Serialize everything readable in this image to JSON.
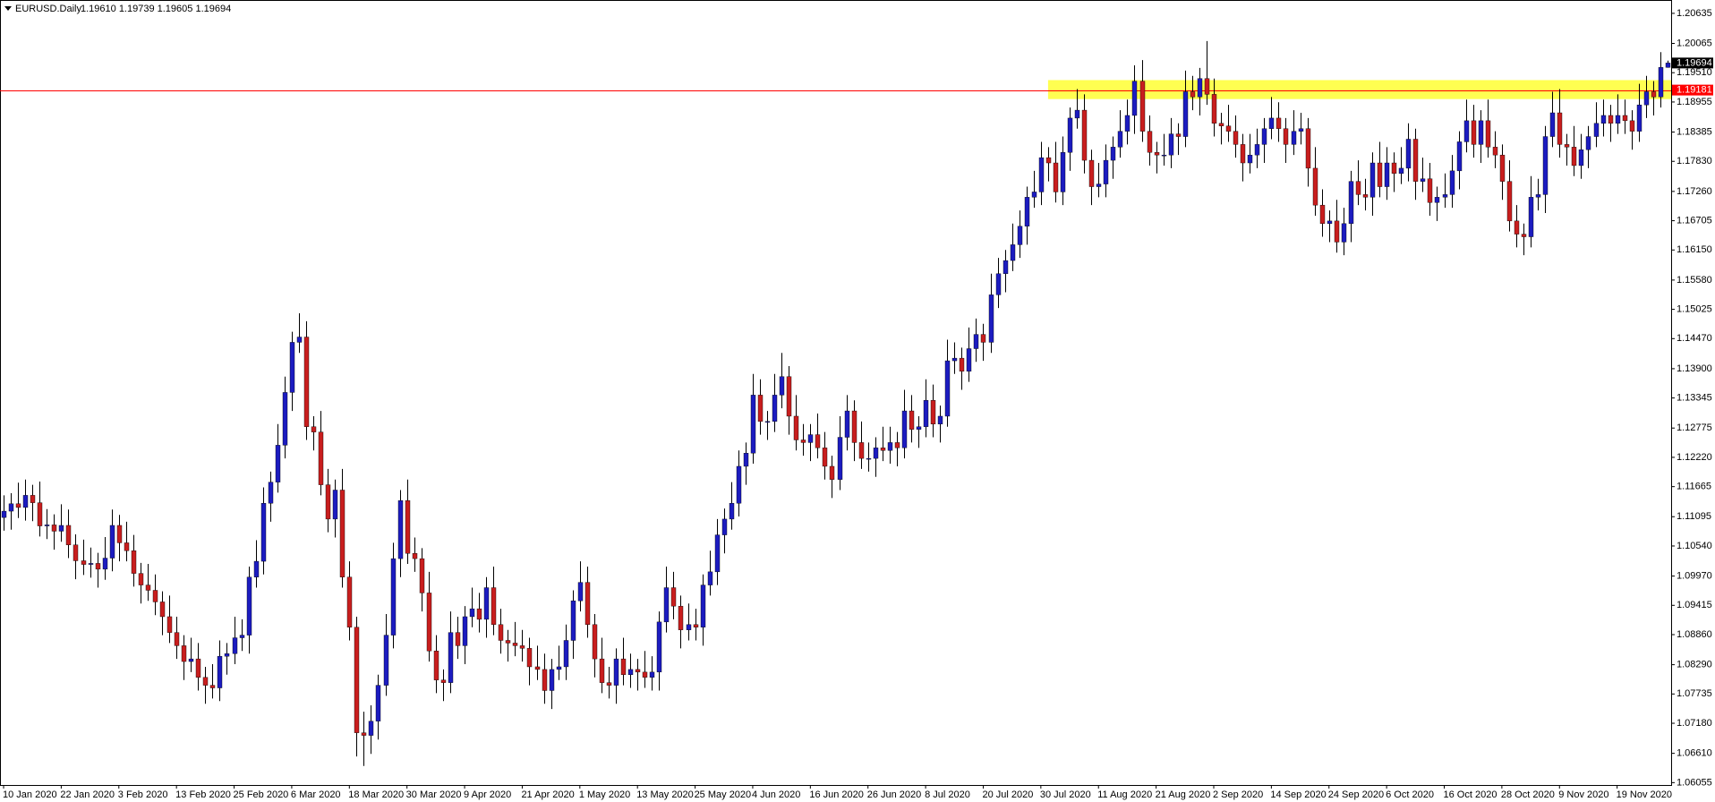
{
  "chart_data": {
    "type": "candlestick",
    "title": "EURUSD.Daily",
    "subtitle": "1.19610 1.19739 1.19605 1.19694",
    "up_color": "#1c1cc0",
    "down_color": "#c81e1e",
    "ylim": [
      1.0601,
      1.2082
    ],
    "yticks": [
      1.20635,
      1.20065,
      {
        "value": 1.1951,
        "label": "1.19510"
      },
      1.18955,
      1.18385,
      {
        "value": 1.1783,
        "label": "1.17830"
      },
      {
        "value": 1.1726,
        "label": "1.17260"
      },
      1.16705,
      {
        "value": 1.1615,
        "label": "1.16150"
      },
      {
        "value": 1.1558,
        "label": "1.15580"
      },
      1.15025,
      {
        "value": 1.1447,
        "label": "1.14470"
      },
      {
        "value": 1.139,
        "label": "1.13900"
      },
      1.13345,
      1.12775,
      {
        "value": 1.1222,
        "label": "1.12220"
      },
      1.11665,
      1.11095,
      {
        "value": 1.1054,
        "label": "1.10540"
      },
      {
        "value": 1.0997,
        "label": "1.09970"
      },
      1.09415,
      {
        "value": 1.0886,
        "label": "1.08860"
      },
      {
        "value": 1.0829,
        "label": "1.08290"
      },
      1.07735,
      {
        "value": 1.0718,
        "label": "1.07180"
      },
      {
        "value": 1.0661,
        "label": "1.06610"
      },
      1.06055
    ],
    "hline": {
      "value": 1.19181,
      "color": "#ff0000"
    },
    "zone": {
      "ylim": [
        1.1901,
        1.1937
      ],
      "xlim": [
        145.5,
        232
      ],
      "color": "#ffff33"
    },
    "categories": [
      "10 Jan 2020",
      null,
      null,
      null,
      null,
      null,
      null,
      null,
      "22 Jan 2020",
      null,
      null,
      null,
      null,
      null,
      null,
      null,
      "3 Feb 2020",
      null,
      null,
      null,
      null,
      null,
      null,
      null,
      "13 Feb 2020",
      null,
      null,
      null,
      null,
      null,
      null,
      null,
      "25 Feb 2020",
      null,
      null,
      null,
      null,
      null,
      null,
      null,
      "6 Mar 2020",
      null,
      null,
      null,
      null,
      null,
      null,
      null,
      "18 Mar 2020",
      null,
      null,
      null,
      null,
      null,
      null,
      null,
      "30 Mar 2020",
      null,
      null,
      null,
      null,
      null,
      null,
      null,
      "9 Apr 2020",
      null,
      null,
      null,
      null,
      null,
      null,
      null,
      "21 Apr 2020",
      null,
      null,
      null,
      null,
      null,
      null,
      null,
      "1 May 2020",
      null,
      null,
      null,
      null,
      null,
      null,
      null,
      "13 May 2020",
      null,
      null,
      null,
      null,
      null,
      null,
      null,
      "25 May 2020",
      null,
      null,
      null,
      null,
      null,
      null,
      null,
      "4 Jun 2020",
      null,
      null,
      null,
      null,
      null,
      null,
      null,
      "16 Jun 2020",
      null,
      null,
      null,
      null,
      null,
      null,
      null,
      "26 Jun 2020",
      null,
      null,
      null,
      null,
      null,
      null,
      null,
      "8 Jul 2020",
      null,
      null,
      null,
      null,
      null,
      null,
      null,
      "20 Jul 2020",
      null,
      null,
      null,
      null,
      null,
      null,
      null,
      "30 Jul 2020",
      null,
      null,
      null,
      null,
      null,
      null,
      null,
      "11 Aug 2020",
      null,
      null,
      null,
      null,
      null,
      null,
      null,
      "21 Aug 2020",
      null,
      null,
      null,
      null,
      null,
      null,
      null,
      "2 Sep 2020",
      null,
      null,
      null,
      null,
      null,
      null,
      null,
      "14 Sep 2020",
      null,
      null,
      null,
      null,
      null,
      null,
      null,
      "24 Sep 2020",
      null,
      null,
      null,
      null,
      null,
      null,
      null,
      "6 Oct 2020",
      null,
      null,
      null,
      null,
      null,
      null,
      null,
      "16 Oct 2020",
      null,
      null,
      null,
      null,
      null,
      null,
      null,
      "28 Oct 2020",
      null,
      null,
      null,
      null,
      null,
      null,
      null,
      "9 Nov 2020",
      null,
      null,
      null,
      null,
      null,
      null,
      null,
      "19 Nov 2020",
      null,
      null,
      null,
      null,
      null,
      null,
      null
    ],
    "open": [
      1.1108,
      1.112,
      1.1134,
      1.1127,
      1.115,
      1.1136,
      1.1092,
      1.1094,
      1.1082,
      1.1093,
      1.1056,
      1.1026,
      1.1019,
      1.1021,
      1.101,
      1.1031,
      1.1093,
      1.106,
      1.1045,
      1.1002,
      1.098,
      1.097,
      1.0948,
      1.092,
      1.089,
      1.0865,
      1.0835,
      1.084,
      1.0805,
      1.079,
      1.0785,
      1.0845,
      1.085,
      1.088,
      1.0885,
      1.0995,
      1.1025,
      1.1135,
      1.1175,
      1.1245,
      1.1345,
      1.144,
      1.145,
      1.128,
      1.127,
      1.117,
      1.1105,
      1.116,
      1.0995,
      1.09,
      1.07,
      1.0695,
      1.0722,
      1.079,
      1.0885,
      1.103,
      1.114,
      1.104,
      1.103,
      1.0965,
      1.0855,
      1.08,
      1.0795,
      1.089,
      1.0865,
      1.092,
      1.0935,
      1.0915,
      1.0975,
      1.0905,
      1.0875,
      1.087,
      1.0865,
      1.086,
      1.0825,
      1.082,
      1.078,
      1.082,
      1.0825,
      1.0875,
      1.095,
      1.0985,
      1.0905,
      1.084,
      1.0795,
      1.079,
      1.084,
      1.081,
      1.082,
      1.0815,
      1.0805,
      1.0815,
      1.091,
      1.0975,
      1.094,
      1.0895,
      1.0905,
      1.09,
      1.098,
      1.1005,
      1.1075,
      1.1105,
      1.1135,
      1.1205,
      1.123,
      1.134,
      1.129,
      1.129,
      1.134,
      1.1375,
      1.13,
      1.1255,
      1.125,
      1.1265,
      1.124,
      1.1205,
      1.118,
      1.126,
      1.131,
      1.125,
      1.122,
      1.122,
      1.124,
      1.1235,
      1.125,
      1.124,
      1.131,
      1.1275,
      1.128,
      1.133,
      1.1285,
      1.13,
      1.1405,
      1.141,
      1.1385,
      1.1428,
      1.1455,
      1.144,
      1.153,
      1.157,
      1.1595,
      1.1625,
      1.166,
      1.1715,
      1.1725,
      1.179,
      1.178,
      1.1725,
      1.18,
      1.1865,
      1.188,
      1.1785,
      1.1735,
      1.174,
      1.1785,
      1.181,
      1.184,
      1.187,
      1.1935,
      1.184,
      1.18,
      1.1795,
      1.1795,
      1.1835,
      1.183,
      1.1915,
      1.1905,
      1.194,
      1.191,
      1.1855,
      1.185,
      1.184,
      1.1815,
      1.178,
      1.1795,
      1.1815,
      1.1845,
      1.1865,
      1.1845,
      1.1815,
      1.184,
      1.1845,
      1.177,
      1.17,
      1.1665,
      1.167,
      1.163,
      1.1665,
      1.1745,
      1.172,
      1.1715,
      1.178,
      1.1735,
      1.178,
      1.176,
      1.177,
      1.1825,
      1.1745,
      1.175,
      1.1705,
      1.1715,
      1.172,
      1.1765,
      1.182,
      1.186,
      1.1815,
      1.186,
      1.181,
      1.1795,
      1.1745,
      1.167,
      1.1645,
      1.164,
      1.1715,
      1.172,
      1.183,
      1.1875,
      1.1815,
      1.181,
      1.1775,
      1.1805,
      1.183,
      1.1855,
      1.187,
      1.1855,
      1.187,
      1.186,
      1.184,
      1.189,
      1.1915,
      1.1905,
      1.1961
    ],
    "high": [
      1.115,
      1.1154,
      1.1174,
      1.118,
      1.117,
      1.1176,
      1.1124,
      1.1114,
      1.1133,
      1.1123,
      1.1076,
      1.1066,
      1.1051,
      1.1041,
      1.1071,
      1.1123,
      1.1113,
      1.11,
      1.1075,
      1.1022,
      1.102,
      1.1,
      1.0968,
      1.096,
      1.092,
      1.0885,
      1.088,
      1.087,
      1.0825,
      1.083,
      1.0875,
      1.087,
      1.092,
      1.0915,
      1.1015,
      1.1065,
      1.1165,
      1.1195,
      1.1285,
      1.1375,
      1.146,
      1.1495,
      1.148,
      1.13,
      1.131,
      1.12,
      1.118,
      1.12,
      1.1025,
      1.092,
      1.074,
      1.0752,
      1.081,
      1.0925,
      1.106,
      1.116,
      1.118,
      1.107,
      1.105,
      1.1005,
      1.0885,
      1.082,
      1.093,
      1.092,
      1.094,
      1.0975,
      1.0965,
      1.0995,
      1.1015,
      1.0935,
      1.0895,
      1.091,
      1.0895,
      1.088,
      1.0865,
      1.085,
      1.084,
      1.0865,
      1.0905,
      1.097,
      1.1025,
      1.1015,
      1.0925,
      1.088,
      1.0825,
      1.086,
      1.088,
      1.085,
      1.084,
      1.0855,
      1.0845,
      1.093,
      1.1015,
      1.1005,
      1.096,
      1.0945,
      1.0935,
      1.1,
      1.1045,
      1.1105,
      1.1125,
      1.1175,
      1.1235,
      1.125,
      1.138,
      1.137,
      1.131,
      1.138,
      1.142,
      1.1395,
      1.134,
      1.1285,
      1.1285,
      1.1305,
      1.127,
      1.1225,
      1.13,
      1.134,
      1.133,
      1.129,
      1.125,
      1.126,
      1.128,
      1.128,
      1.127,
      1.135,
      1.134,
      1.13,
      1.137,
      1.136,
      1.132,
      1.1445,
      1.144,
      1.143,
      1.1468,
      1.1485,
      1.1475,
      1.157,
      1.16,
      1.1615,
      1.1665,
      1.169,
      1.1735,
      1.1765,
      1.182,
      1.181,
      1.182,
      1.183,
      1.1885,
      1.192,
      1.191,
      1.1805,
      1.178,
      1.1815,
      1.183,
      1.188,
      1.19,
      1.1965,
      1.1975,
      1.187,
      1.182,
      1.1835,
      1.1865,
      1.1855,
      1.1955,
      1.1945,
      1.196,
      1.2011,
      1.194,
      1.1875,
      1.189,
      1.187,
      1.1835,
      1.1835,
      1.1845,
      1.1865,
      1.1905,
      1.1895,
      1.1865,
      1.188,
      1.1875,
      1.1865,
      1.181,
      1.173,
      1.169,
      1.171,
      1.1695,
      1.1765,
      1.1785,
      1.175,
      1.18,
      1.182,
      1.181,
      1.18,
      1.181,
      1.1855,
      1.1845,
      1.179,
      1.178,
      1.1735,
      1.176,
      1.1795,
      1.184,
      1.19,
      1.189,
      1.188,
      1.19,
      1.184,
      1.1815,
      1.1785,
      1.17,
      1.1665,
      1.1755,
      1.175,
      1.185,
      1.1915,
      1.192,
      1.1835,
      1.185,
      1.1835,
      1.185,
      1.1895,
      1.19,
      1.189,
      1.191,
      1.19,
      1.188,
      1.193,
      1.1945,
      1.1935,
      1.199,
      1.19739
    ],
    "low": [
      1.1083,
      1.1085,
      1.1107,
      1.1102,
      1.1101,
      1.1072,
      1.1067,
      1.1047,
      1.1062,
      1.1031,
      1.0991,
      1.0999,
      1.0994,
      1.0975,
      1.099,
      1.1006,
      1.1025,
      1.1025,
      1.0977,
      1.0945,
      1.095,
      1.0923,
      1.0885,
      1.087,
      1.084,
      1.08,
      1.0815,
      1.078,
      1.0755,
      1.0765,
      1.076,
      1.081,
      1.083,
      1.0855,
      1.085,
      1.0975,
      1.1,
      1.11,
      1.1155,
      1.122,
      1.131,
      1.142,
      1.1255,
      1.1235,
      1.115,
      1.108,
      1.107,
      1.0975,
      1.0875,
      1.0655,
      1.0637,
      1.066,
      1.0687,
      1.077,
      1.086,
      1.0995,
      1.102,
      1.1005,
      1.093,
      1.0835,
      1.0775,
      1.076,
      1.0775,
      1.084,
      1.083,
      1.09,
      1.089,
      1.088,
      1.0885,
      1.085,
      1.0835,
      1.0845,
      1.0835,
      1.079,
      1.08,
      1.0755,
      1.0745,
      1.08,
      1.08,
      1.084,
      1.093,
      1.088,
      1.0805,
      1.0775,
      1.0765,
      1.0755,
      1.079,
      1.0785,
      1.078,
      1.0785,
      1.078,
      1.078,
      1.089,
      1.0915,
      1.086,
      1.0875,
      1.0875,
      1.0865,
      1.096,
      1.098,
      1.104,
      1.1085,
      1.111,
      1.117,
      1.121,
      1.1265,
      1.1255,
      1.127,
      1.1315,
      1.1265,
      1.1235,
      1.1225,
      1.1215,
      1.122,
      1.118,
      1.1145,
      1.116,
      1.1235,
      1.1215,
      1.12,
      1.1195,
      1.1185,
      1.1215,
      1.121,
      1.1205,
      1.122,
      1.125,
      1.124,
      1.126,
      1.126,
      1.125,
      1.128,
      1.138,
      1.135,
      1.1365,
      1.1403,
      1.1405,
      1.142,
      1.1505,
      1.1535,
      1.1575,
      1.16,
      1.1625,
      1.1695,
      1.17,
      1.1745,
      1.1705,
      1.17,
      1.1765,
      1.1845,
      1.176,
      1.17,
      1.1715,
      1.1715,
      1.175,
      1.179,
      1.1815,
      1.1835,
      1.182,
      1.1775,
      1.176,
      1.1775,
      1.177,
      1.1795,
      1.181,
      1.188,
      1.187,
      1.189,
      1.183,
      1.1815,
      1.182,
      1.179,
      1.1745,
      1.176,
      1.177,
      1.178,
      1.1825,
      1.182,
      1.178,
      1.1795,
      1.1815,
      1.1735,
      1.168,
      1.164,
      1.163,
      1.161,
      1.1605,
      1.163,
      1.17,
      1.169,
      1.168,
      1.1715,
      1.171,
      1.1725,
      1.174,
      1.1745,
      1.171,
      1.1725,
      1.168,
      1.167,
      1.1695,
      1.1695,
      1.173,
      1.18,
      1.179,
      1.178,
      1.179,
      1.177,
      1.171,
      1.165,
      1.162,
      1.1605,
      1.162,
      1.169,
      1.1685,
      1.181,
      1.179,
      1.1775,
      1.1755,
      1.175,
      1.177,
      1.181,
      1.183,
      1.182,
      1.1835,
      1.1835,
      1.1805,
      1.182,
      1.1865,
      1.187,
      1.1885,
      1.19605
    ],
    "close": [
      1.112,
      1.1134,
      1.1127,
      1.115,
      1.1136,
      1.1092,
      1.1094,
      1.1082,
      1.1093,
      1.1056,
      1.1026,
      1.1019,
      1.1021,
      1.101,
      1.1031,
      1.1093,
      1.106,
      1.1045,
      1.1002,
      1.098,
      1.097,
      1.0948,
      1.092,
      1.089,
      1.0865,
      1.0835,
      1.084,
      1.0805,
      1.079,
      1.0785,
      1.0845,
      1.085,
      1.088,
      1.0885,
      1.0995,
      1.1025,
      1.1135,
      1.1175,
      1.1245,
      1.1345,
      1.144,
      1.145,
      1.128,
      1.127,
      1.117,
      1.1105,
      1.116,
      1.0995,
      1.09,
      1.07,
      1.0695,
      1.0722,
      1.079,
      1.0885,
      1.103,
      1.114,
      1.104,
      1.103,
      1.0965,
      1.0855,
      1.08,
      1.0795,
      1.089,
      1.0865,
      1.092,
      1.0935,
      1.0915,
      1.0975,
      1.0905,
      1.0875,
      1.087,
      1.0865,
      1.086,
      1.0825,
      1.082,
      1.078,
      1.082,
      1.0825,
      1.0875,
      1.095,
      1.0985,
      1.0905,
      1.084,
      1.0795,
      1.079,
      1.084,
      1.081,
      1.082,
      1.0815,
      1.0805,
      1.0815,
      1.091,
      1.0975,
      1.094,
      1.0895,
      1.0905,
      1.09,
      1.098,
      1.1005,
      1.1075,
      1.1105,
      1.1135,
      1.1205,
      1.123,
      1.134,
      1.129,
      1.129,
      1.134,
      1.1375,
      1.13,
      1.1255,
      1.125,
      1.1265,
      1.124,
      1.1205,
      1.118,
      1.126,
      1.131,
      1.125,
      1.122,
      1.122,
      1.124,
      1.1235,
      1.125,
      1.124,
      1.131,
      1.1275,
      1.128,
      1.133,
      1.1285,
      1.13,
      1.1405,
      1.141,
      1.1385,
      1.1428,
      1.1455,
      1.144,
      1.153,
      1.157,
      1.1595,
      1.1625,
      1.166,
      1.1715,
      1.1725,
      1.179,
      1.178,
      1.1725,
      1.18,
      1.1865,
      1.188,
      1.1785,
      1.1735,
      1.174,
      1.1785,
      1.181,
      1.184,
      1.187,
      1.1935,
      1.184,
      1.18,
      1.1795,
      1.1795,
      1.1835,
      1.183,
      1.1915,
      1.1905,
      1.194,
      1.191,
      1.1855,
      1.185,
      1.184,
      1.1815,
      1.178,
      1.1795,
      1.1815,
      1.1845,
      1.1865,
      1.1845,
      1.1815,
      1.184,
      1.1845,
      1.177,
      1.17,
      1.1665,
      1.167,
      1.163,
      1.1665,
      1.1745,
      1.172,
      1.1715,
      1.178,
      1.1735,
      1.178,
      1.176,
      1.177,
      1.1825,
      1.1745,
      1.175,
      1.1705,
      1.1715,
      1.172,
      1.1765,
      1.182,
      1.186,
      1.1815,
      1.186,
      1.181,
      1.1795,
      1.1745,
      1.167,
      1.1645,
      1.164,
      1.1715,
      1.172,
      1.183,
      1.1875,
      1.1815,
      1.181,
      1.1775,
      1.1805,
      1.183,
      1.1855,
      1.187,
      1.1855,
      1.187,
      1.186,
      1.184,
      1.189,
      1.1915,
      1.1905,
      1.1961,
      1.19694
    ]
  }
}
